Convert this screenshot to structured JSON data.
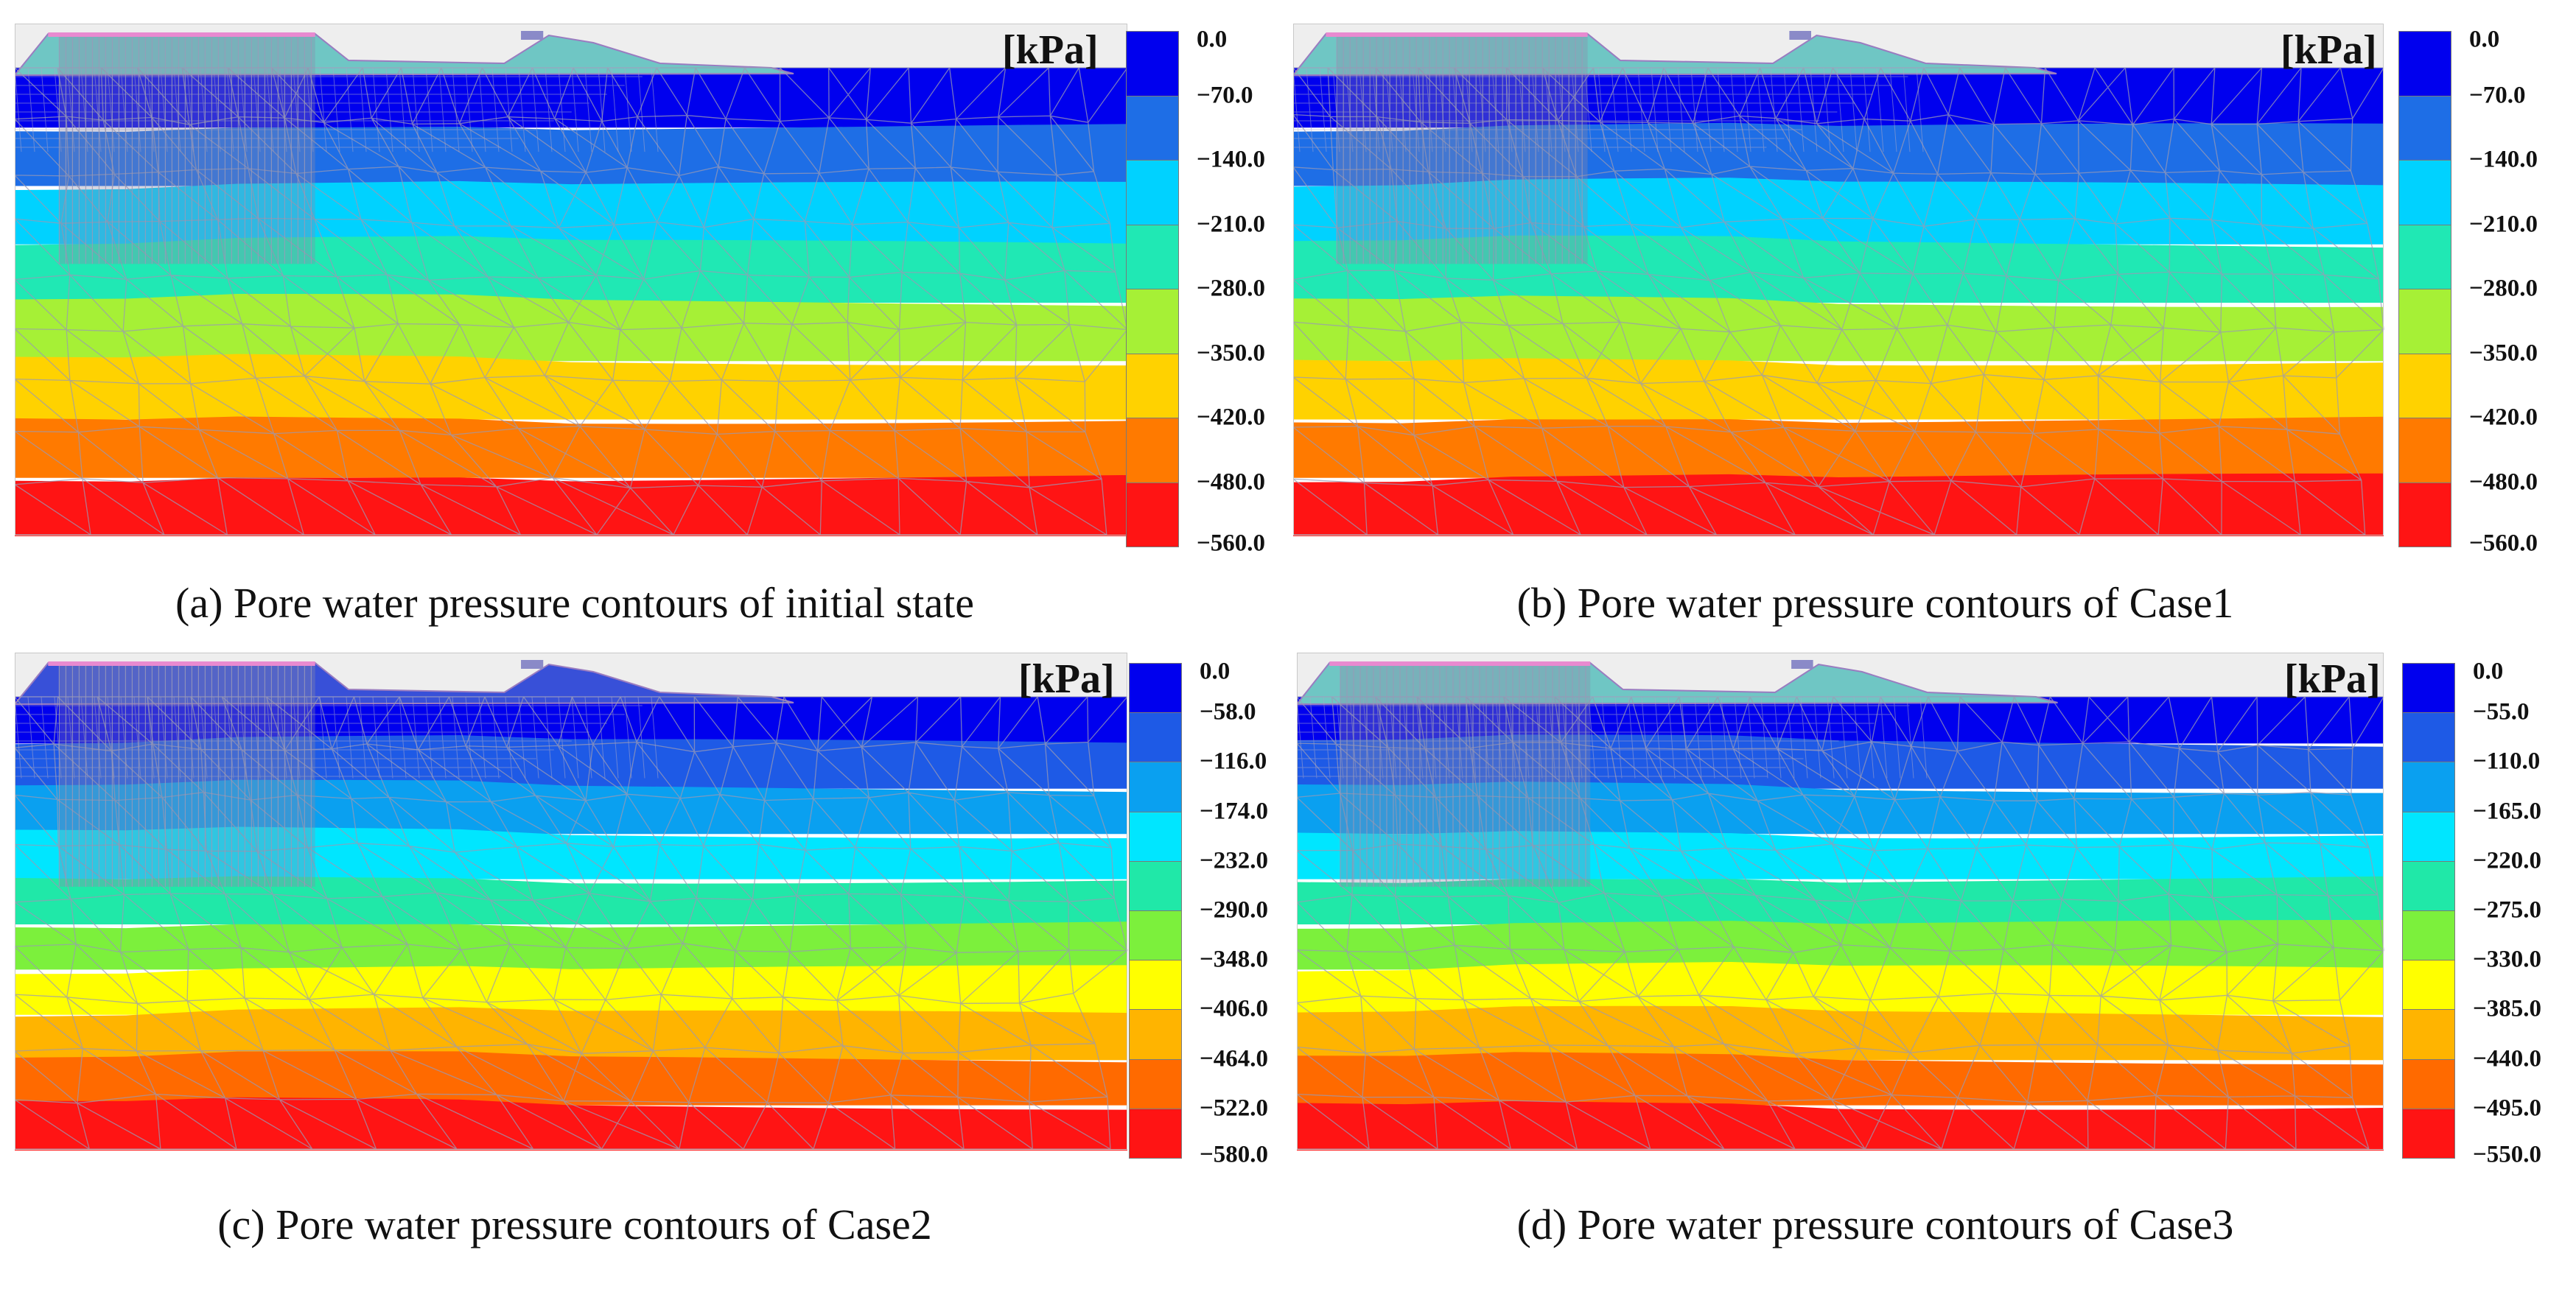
{
  "panels": [
    {
      "caption": "(a) Pore water pressure contours of initial state",
      "unit": "[kPa]",
      "legend_ticks": [
        "0.0",
        "−70.0",
        "−140.0",
        "−210.0",
        "−280.0",
        "−350.0",
        "−420.0",
        "−480.0",
        "−560.0"
      ],
      "band_colors": [
        "#0000ee",
        "#1e6ee6",
        "#00d2ff",
        "#20e8b4",
        "#a6f036",
        "#ffd200",
        "#ff7a00",
        "#ff1414"
      ]
    },
    {
      "caption": "(b) Pore water pressure contours of Case1",
      "unit": "[kPa]",
      "legend_ticks": [
        "0.0",
        "−70.0",
        "−140.0",
        "−210.0",
        "−280.0",
        "−350.0",
        "−420.0",
        "−480.0",
        "−560.0"
      ],
      "band_colors": [
        "#0000ee",
        "#1e6ee6",
        "#00d2ff",
        "#20e8b4",
        "#a6f036",
        "#ffd200",
        "#ff7a00",
        "#ff1414"
      ]
    },
    {
      "caption": "(c) Pore water pressure contours of Case2",
      "unit": "[kPa]",
      "legend_ticks": [
        "0.0",
        "−58.0",
        "−116.0",
        "−174.0",
        "−232.0",
        "−290.0",
        "−348.0",
        "−406.0",
        "−464.0",
        "−522.0",
        "−580.0"
      ],
      "band_colors": [
        "#0000ee",
        "#1e5ae6",
        "#0aa0f0",
        "#00e6ff",
        "#20e8a8",
        "#7cf03c",
        "#ffff00",
        "#ffb400",
        "#ff6a00",
        "#ff1414"
      ]
    },
    {
      "caption": "(d) Pore water pressure contours of Case3",
      "unit": "[kPa]",
      "legend_ticks": [
        "0.0",
        "−55.0",
        "−110.0",
        "−165.0",
        "−220.0",
        "−275.0",
        "−330.0",
        "−385.0",
        "−440.0",
        "−495.0",
        "−550.0"
      ],
      "band_colors": [
        "#0000ee",
        "#1e5ae6",
        "#0aa0f0",
        "#00e6ff",
        "#20e8a8",
        "#7cf03c",
        "#ffff00",
        "#ffb400",
        "#ff6a00",
        "#ff1414"
      ]
    }
  ]
}
